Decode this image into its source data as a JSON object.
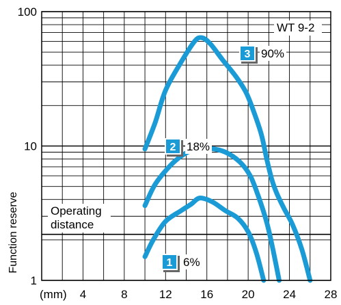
{
  "chart_data": {
    "type": "line",
    "title": "",
    "tag": "WT 9-2",
    "xlabel": "(mm)",
    "ylabel": "Function reserve",
    "x_unit": "(mm)",
    "xlim": [
      0,
      28
    ],
    "ylim": [
      1,
      100
    ],
    "y_scale": "log",
    "x_ticks": [
      4,
      8,
      12,
      16,
      20,
      24,
      28
    ],
    "x_tick_labels": [
      "4",
      "8",
      "12",
      "16",
      "20",
      "24",
      "28"
    ],
    "y_ticks": [
      1,
      10,
      100
    ],
    "y_tick_labels": [
      "1",
      "10",
      "100"
    ],
    "grid": true,
    "threshold": {
      "y": 2.2,
      "label_line1": "Operating",
      "label_line2": "distance"
    },
    "colors": {
      "curve": "#1b9bd5",
      "badge": "#1b9bd5",
      "grid": "#000000"
    },
    "series": [
      {
        "badge": "1",
        "label": "6%",
        "x": [
          10,
          10.8,
          12,
          13.5,
          14.5,
          15.3,
          16.5,
          17.8,
          19,
          20,
          20.8,
          21.5
        ],
        "y": [
          1.5,
          2.0,
          2.75,
          3.3,
          3.7,
          4.1,
          3.85,
          3.3,
          2.9,
          2.3,
          1.6,
          1.0
        ]
      },
      {
        "badge": "2",
        "label": "18%",
        "x": [
          10,
          11,
          12.5,
          13.8,
          15,
          16.3,
          17.8,
          19.2,
          20.2,
          21,
          21.8,
          22.4,
          23
        ],
        "y": [
          3.6,
          5.2,
          7.2,
          8.7,
          9.5,
          9.6,
          9.0,
          7.6,
          6.0,
          4.2,
          2.7,
          1.7,
          1.0
        ]
      },
      {
        "badge": "3",
        "label": "90%",
        "x": [
          10,
          11,
          12,
          13.5,
          14.8,
          15.5,
          16.3,
          17.5,
          18.8,
          19.8,
          20.6,
          21.3,
          21.8,
          22.3,
          22.8,
          23.5,
          24.3,
          25.2,
          26
        ],
        "y": [
          9.5,
          15,
          26,
          42,
          60,
          64,
          58,
          44,
          33,
          25,
          17.5,
          12,
          8.0,
          5.6,
          4.4,
          3.4,
          2.6,
          1.7,
          1.0
        ]
      }
    ]
  }
}
